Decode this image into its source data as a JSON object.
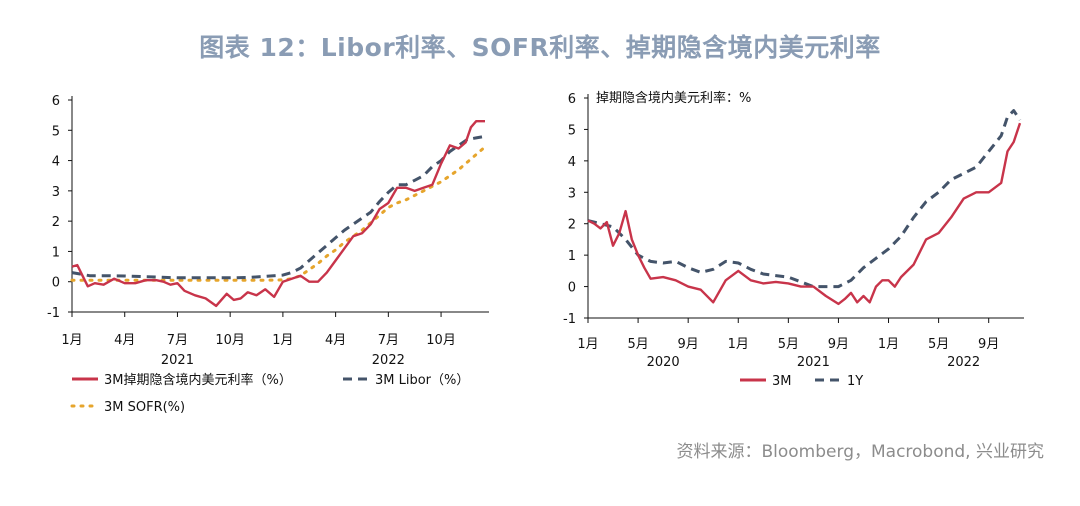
{
  "figure_title": "图表 12：Libor利率、SOFR利率、掉期隐含境内美元利率",
  "source_note": "资料来源：Bloomberg，Macrobond, 兴业研究",
  "chart_data": [
    {
      "type": "line",
      "title": "",
      "ylim": [
        -1,
        6
      ],
      "yticks": [
        "6",
        "5",
        "4",
        "3",
        "2",
        "1",
        "0",
        "-1"
      ],
      "xticks": [
        "1月",
        "4月",
        "7月",
        "10月",
        "1月",
        "4月",
        "7月",
        "10月"
      ],
      "year_labels": [
        "2021",
        "2022"
      ],
      "grid": false,
      "legend_position": "bottom",
      "series": [
        {
          "name": "3M掉期隐含境内美元利率（%）",
          "color": "#c8344a",
          "style": "solid",
          "x": [
            0,
            0.3,
            0.6,
            0.9,
            1.3,
            1.8,
            2.4,
            3.0,
            3.6,
            4.2,
            4.8,
            5.2,
            5.6,
            6.0,
            6.4,
            7.0,
            7.6,
            8.2,
            8.8,
            9.2,
            9.6,
            10.0,
            10.5,
            11.0,
            11.5,
            12.0,
            12.5,
            13.0,
            13.5,
            14.0,
            14.5,
            15.0,
            15.5,
            16.0,
            16.5,
            17.0,
            17.5,
            18.0,
            18.5,
            19.0,
            19.5,
            20.0,
            20.5,
            21.0,
            21.5,
            22.0,
            22.4,
            22.7,
            23.0,
            23.5
          ],
          "values": [
            0.5,
            0.55,
            0.2,
            -0.15,
            -0.05,
            -0.1,
            0.1,
            -0.05,
            -0.05,
            0.05,
            0.05,
            0.0,
            -0.1,
            -0.05,
            -0.3,
            -0.45,
            -0.55,
            -0.8,
            -0.4,
            -0.6,
            -0.55,
            -0.35,
            -0.45,
            -0.25,
            -0.5,
            0.0,
            0.1,
            0.2,
            0.0,
            0.0,
            0.3,
            0.7,
            1.1,
            1.5,
            1.6,
            1.9,
            2.4,
            2.6,
            3.1,
            3.1,
            3.0,
            3.1,
            3.2,
            3.9,
            4.5,
            4.4,
            4.6,
            5.1,
            5.3,
            5.3
          ]
        },
        {
          "name": "3M Libor（%）",
          "color": "#44546a",
          "style": "dashed",
          "x": [
            0,
            1,
            2,
            3,
            4,
            5,
            6,
            7,
            8,
            9,
            10,
            11,
            12,
            12.5,
            13,
            13.5,
            14,
            14.5,
            15,
            15.5,
            16,
            16.5,
            17,
            17.5,
            18,
            18.5,
            19,
            19.5,
            20,
            20.5,
            21,
            21.5,
            22,
            22.5,
            23,
            23.5
          ],
          "values": [
            0.3,
            0.2,
            0.2,
            0.19,
            0.17,
            0.15,
            0.13,
            0.13,
            0.13,
            0.13,
            0.14,
            0.18,
            0.22,
            0.3,
            0.45,
            0.7,
            0.95,
            1.2,
            1.45,
            1.7,
            1.9,
            2.1,
            2.3,
            2.65,
            2.95,
            3.2,
            3.2,
            3.35,
            3.5,
            3.8,
            4.0,
            4.3,
            4.5,
            4.7,
            4.75,
            4.8
          ]
        },
        {
          "name": "3M SOFR(%)",
          "color": "#e6a52c",
          "style": "dotted",
          "x": [
            0,
            2,
            4,
            6,
            8,
            10,
            11,
            12,
            12.5,
            13,
            13.5,
            14,
            14.5,
            15,
            15.5,
            16,
            16.5,
            17,
            17.5,
            18,
            18.5,
            19,
            19.5,
            20,
            20.5,
            21,
            21.5,
            22,
            22.5,
            23,
            23.5
          ],
          "values": [
            0.05,
            0.05,
            0.05,
            0.05,
            0.05,
            0.05,
            0.05,
            0.06,
            0.1,
            0.2,
            0.4,
            0.6,
            0.85,
            1.05,
            1.3,
            1.5,
            1.7,
            1.95,
            2.2,
            2.45,
            2.6,
            2.7,
            2.85,
            3.0,
            3.15,
            3.3,
            3.5,
            3.7,
            3.95,
            4.2,
            4.45
          ]
        }
      ]
    },
    {
      "type": "line",
      "title": "掉期隐含境内美元利率：%",
      "ylim": [
        -1,
        6
      ],
      "yticks": [
        "6",
        "5",
        "4",
        "3",
        "2",
        "1",
        "0",
        "-1"
      ],
      "xticks": [
        "1月",
        "5月",
        "9月",
        "1月",
        "5月",
        "9月",
        "1月",
        "5月",
        "9月"
      ],
      "year_labels": [
        "2020",
        "2021",
        "2022"
      ],
      "grid": false,
      "legend_position": "bottom",
      "series": [
        {
          "name": "3M",
          "color": "#c8344a",
          "style": "solid",
          "x": [
            0,
            0.5,
            1,
            1.5,
            2,
            2.5,
            3,
            3.5,
            4,
            4.5,
            5,
            6,
            7,
            8,
            9,
            10,
            11,
            12,
            13,
            14,
            15,
            16,
            17,
            18,
            19,
            20,
            20.5,
            21,
            21.5,
            22,
            22.5,
            23,
            23.5,
            24,
            24.5,
            25,
            26,
            27,
            28,
            29,
            30,
            31,
            32,
            33,
            33.5,
            34,
            34.5
          ],
          "values": [
            2.1,
            2.0,
            1.85,
            2.05,
            1.3,
            1.7,
            2.4,
            1.5,
            1.0,
            0.6,
            0.25,
            0.3,
            0.2,
            0.0,
            -0.1,
            -0.5,
            0.2,
            0.5,
            0.2,
            0.1,
            0.15,
            0.1,
            0.0,
            0.0,
            -0.3,
            -0.55,
            -0.4,
            -0.2,
            -0.5,
            -0.3,
            -0.5,
            0.0,
            0.2,
            0.2,
            0.0,
            0.3,
            0.7,
            1.5,
            1.7,
            2.2,
            2.8,
            3.0,
            3.0,
            3.3,
            4.3,
            4.6,
            5.2
          ]
        },
        {
          "name": "1Y",
          "color": "#44546a",
          "style": "dashed",
          "x": [
            0,
            1,
            2,
            3,
            4,
            5,
            6,
            7,
            8,
            9,
            10,
            11,
            12,
            13,
            14,
            15,
            16,
            17,
            18,
            19,
            20,
            21,
            22,
            23,
            24,
            25,
            26,
            27,
            28,
            29,
            30,
            31,
            32,
            33,
            33.5,
            34,
            34.5
          ],
          "values": [
            2.1,
            2.0,
            1.9,
            1.5,
            1.0,
            0.8,
            0.75,
            0.8,
            0.6,
            0.45,
            0.55,
            0.8,
            0.75,
            0.55,
            0.4,
            0.35,
            0.3,
            0.15,
            0.0,
            0.0,
            0.0,
            0.2,
            0.6,
            0.9,
            1.2,
            1.6,
            2.2,
            2.7,
            3.0,
            3.4,
            3.6,
            3.8,
            4.3,
            4.8,
            5.4,
            5.6,
            5.3
          ]
        }
      ]
    }
  ]
}
